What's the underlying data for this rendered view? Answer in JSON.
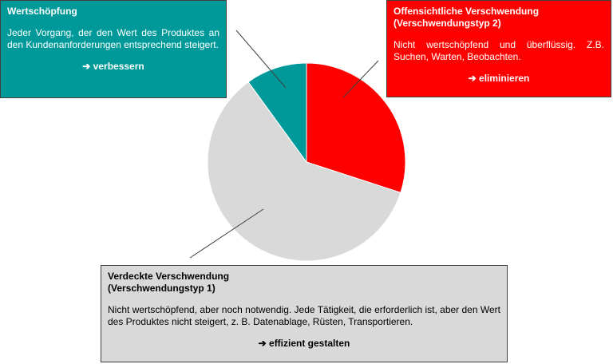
{
  "chart_data": {
    "type": "pie",
    "values": [
      30,
      60,
      10
    ],
    "colors": [
      "#ff0000",
      "#d9d9d9",
      "#009999"
    ],
    "labels": [
      {
        "title": [
          "Offensichtliche Verschwendung",
          "(Verschwendungstyp 2)"
        ],
        "text": "Nicht wertschöpfend und überflüssig. Z.B. Suchen, Warten, Beobachten.",
        "action": "➔ eliminieren"
      },
      {
        "title": [
          "Verdeckte Verschwendung",
          "(Verschwendungstyp 1)"
        ],
        "text": "Nicht wertschöpfend, aber noch notwendig. Jede Tätigkeit, die erforderlich ist, aber den Wert des Produktes nicht steigert, z. B. Datenablage, Rüsten, Transportieren.",
        "action": "➔ effizient gestalten"
      },
      {
        "title": [
          "Wertschöpfung"
        ],
        "text": "Jeder Vorgang, der den Wert des Produktes an den Kundenanforderungen entsprechend steigert.",
        "action": "➔ verbessern"
      }
    ]
  }
}
